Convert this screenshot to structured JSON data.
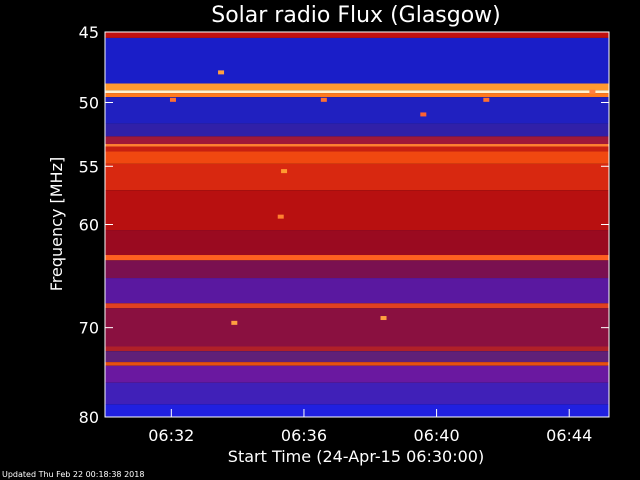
{
  "chart_data": {
    "type": "heatmap",
    "title": "Solar radio Flux (Glasgow)",
    "xlabel": "Start Time (24-Apr-15 06:30:00)",
    "ylabel": "Frequency [MHz]",
    "xlim_minutes": [
      0,
      15.2
    ],
    "ylim": [
      45,
      80
    ],
    "y_scale": "log",
    "y_inverted": true,
    "x_ticks": [
      {
        "label": "06:32",
        "minute": 2
      },
      {
        "label": "06:36",
        "minute": 6
      },
      {
        "label": "06:40",
        "minute": 10
      },
      {
        "label": "06:44",
        "minute": 14
      }
    ],
    "y_ticks": [
      {
        "label": "45",
        "value": 45
      },
      {
        "label": "50",
        "value": 50
      },
      {
        "label": "55",
        "value": 55
      },
      {
        "label": "60",
        "value": 60
      },
      {
        "label": "70",
        "value": 70
      },
      {
        "label": "80",
        "value": 80
      }
    ],
    "bands": [
      {
        "from": 45.0,
        "to": 45.4,
        "color": "#c01010"
      },
      {
        "from": 45.4,
        "to": 48.6,
        "color": "#1a1ec8"
      },
      {
        "from": 48.6,
        "to": 49.1,
        "color": "#ff9a30"
      },
      {
        "from": 49.1,
        "to": 49.3,
        "color": "#fff2d0"
      },
      {
        "from": 49.3,
        "to": 49.6,
        "color": "#ff7a20"
      },
      {
        "from": 49.6,
        "to": 51.6,
        "color": "#2020c0"
      },
      {
        "from": 51.6,
        "to": 52.6,
        "color": "#3020a8"
      },
      {
        "from": 52.6,
        "to": 53.2,
        "color": "#a01838"
      },
      {
        "from": 53.2,
        "to": 53.4,
        "color": "#ff8030"
      },
      {
        "from": 53.4,
        "to": 53.8,
        "color": "#c82010"
      },
      {
        "from": 53.8,
        "to": 54.8,
        "color": "#f04810"
      },
      {
        "from": 54.8,
        "to": 57.0,
        "color": "#d82810"
      },
      {
        "from": 57.0,
        "to": 60.5,
        "color": "#b81010"
      },
      {
        "from": 60.5,
        "to": 62.8,
        "color": "#9a0a20"
      },
      {
        "from": 62.8,
        "to": 63.3,
        "color": "#ff6020"
      },
      {
        "from": 63.3,
        "to": 65.0,
        "color": "#7a1050"
      },
      {
        "from": 65.0,
        "to": 67.5,
        "color": "#5a18a0"
      },
      {
        "from": 67.5,
        "to": 68.0,
        "color": "#e04020"
      },
      {
        "from": 68.0,
        "to": 72.0,
        "color": "#8a1040"
      },
      {
        "from": 72.0,
        "to": 72.5,
        "color": "#b02028"
      },
      {
        "from": 72.5,
        "to": 73.7,
        "color": "#602078"
      },
      {
        "from": 73.7,
        "to": 74.1,
        "color": "#e85010"
      },
      {
        "from": 74.1,
        "to": 76.0,
        "color": "#6a18a0"
      },
      {
        "from": 76.0,
        "to": 78.5,
        "color": "#4020b8"
      },
      {
        "from": 78.5,
        "to": 80.0,
        "color": "#2020e0"
      }
    ],
    "bursts": [
      {
        "minute": 5.3,
        "freq": 59.3,
        "color": "#ff8030"
      },
      {
        "minute": 5.4,
        "freq": 55.4,
        "color": "#ff9a30"
      },
      {
        "minute": 2.05,
        "freq": 49.8,
        "color": "#ff7030"
      },
      {
        "minute": 3.5,
        "freq": 47.8,
        "color": "#ffa040"
      },
      {
        "minute": 6.6,
        "freq": 49.8,
        "color": "#ff7030"
      },
      {
        "minute": 9.6,
        "freq": 50.9,
        "color": "#ff6030"
      },
      {
        "minute": 11.5,
        "freq": 49.8,
        "color": "#ff7030"
      },
      {
        "minute": 14.7,
        "freq": 49.2,
        "color": "#ff8040"
      },
      {
        "minute": 3.9,
        "freq": 69.5,
        "color": "#ffa040"
      },
      {
        "minute": 8.4,
        "freq": 69.0,
        "color": "#ffa040"
      }
    ],
    "colors": {
      "background": "#000000",
      "axes": "#ffffff"
    }
  },
  "footer": {
    "updated": "Updated Thu Feb 22 00:18:38 2018"
  }
}
